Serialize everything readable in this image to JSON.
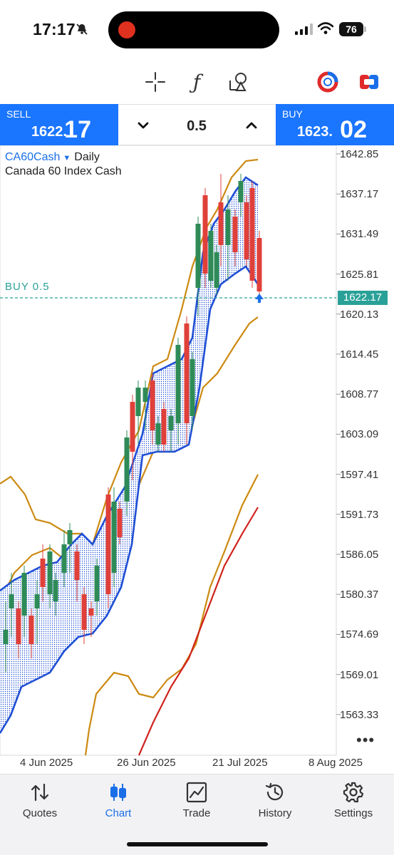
{
  "status_bar": {
    "time": "17:17",
    "battery": "76"
  },
  "trade_panel": {
    "sell": {
      "label": "SELL",
      "price_main": "1622.",
      "price_big": "17"
    },
    "volume": "0.5",
    "buy": {
      "label": "BUY",
      "price_main": "1623.",
      "price_big": "02"
    }
  },
  "chart": {
    "symbol": "CA60Cash",
    "timeframe": "Daily",
    "description": "Canada 60 Index Cash",
    "order_line_label": "BUY 0.5",
    "current_price_tag": "1622.17",
    "more": "•••",
    "y_ticks": [
      "1642.85",
      "1637.17",
      "1631.49",
      "1625.81",
      "1620.13",
      "1614.45",
      "1608.77",
      "1603.09",
      "1597.41",
      "1591.73",
      "1586.05",
      "1580.37",
      "1574.69",
      "1569.01",
      "1563.33"
    ],
    "x_ticks": [
      "4 Jun 2025",
      "26 Jun 2025",
      "21 Jul 2025",
      "8 Aug 2025"
    ],
    "colors": {
      "bull": "#2e8b57",
      "bear": "#e0403a",
      "cloud": "#1f4fd6",
      "bands": "#cc8a12",
      "red_ma": "#d0221c",
      "order_line": "#2aa198"
    }
  },
  "tabs": [
    {
      "label": "Quotes",
      "icon": "quotes-arrows-icon"
    },
    {
      "label": "Chart",
      "icon": "candlestick-icon",
      "active": true
    },
    {
      "label": "Trade",
      "icon": "trade-chart-icon"
    },
    {
      "label": "History",
      "icon": "history-clock-icon"
    },
    {
      "label": "Settings",
      "icon": "gear-icon"
    }
  ]
}
